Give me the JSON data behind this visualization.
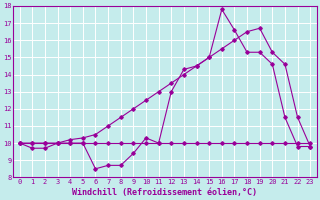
{
  "xlabel": "Windchill (Refroidissement éolien,°C)",
  "background_color": "#c5ecec",
  "line_color": "#990099",
  "grid_color": "#ffffff",
  "xlim": [
    -0.5,
    23.5
  ],
  "ylim": [
    8,
    18
  ],
  "xticks": [
    0,
    1,
    2,
    3,
    4,
    5,
    6,
    7,
    8,
    9,
    10,
    11,
    12,
    13,
    14,
    15,
    16,
    17,
    18,
    19,
    20,
    21,
    22,
    23
  ],
  "yticks": [
    8,
    9,
    10,
    11,
    12,
    13,
    14,
    15,
    16,
    17,
    18
  ],
  "series1_x": [
    0,
    1,
    2,
    3,
    4,
    5,
    6,
    7,
    8,
    9,
    10,
    11,
    12,
    13,
    14,
    15,
    16,
    17,
    18,
    19,
    20,
    21,
    22,
    23
  ],
  "series1_y": [
    10,
    10,
    10,
    10,
    10,
    10,
    10,
    10,
    10,
    10,
    10,
    10,
    10,
    10,
    10,
    10,
    10,
    10,
    10,
    10,
    10,
    10,
    10,
    10
  ],
  "series2_x": [
    0,
    1,
    2,
    3,
    4,
    5,
    6,
    7,
    8,
    9,
    10,
    11,
    12,
    13,
    14,
    15,
    16,
    17,
    18,
    19,
    20,
    21,
    22,
    23
  ],
  "series2_y": [
    10,
    9.7,
    9.7,
    10.0,
    10.0,
    10.0,
    8.5,
    8.7,
    8.7,
    9.4,
    10.3,
    10.0,
    13.0,
    14.3,
    14.5,
    15.0,
    17.8,
    16.6,
    15.3,
    15.3,
    14.6,
    11.5,
    9.8,
    9.8
  ],
  "series3_x": [
    0,
    1,
    2,
    3,
    4,
    5,
    6,
    7,
    8,
    9,
    10,
    11,
    12,
    13,
    14,
    15,
    16,
    17,
    18,
    19,
    20,
    21,
    22,
    23
  ],
  "series3_y": [
    10,
    10.0,
    10.0,
    10.0,
    10.2,
    10.3,
    10.5,
    11.0,
    11.5,
    12.0,
    12.5,
    13.0,
    13.5,
    14.0,
    14.5,
    15.0,
    15.5,
    16.0,
    16.5,
    16.7,
    15.3,
    14.6,
    11.5,
    9.8
  ],
  "xlabel_fontsize": 6.0,
  "tick_fontsize": 5.0,
  "figsize": [
    3.2,
    2.0
  ],
  "dpi": 100
}
